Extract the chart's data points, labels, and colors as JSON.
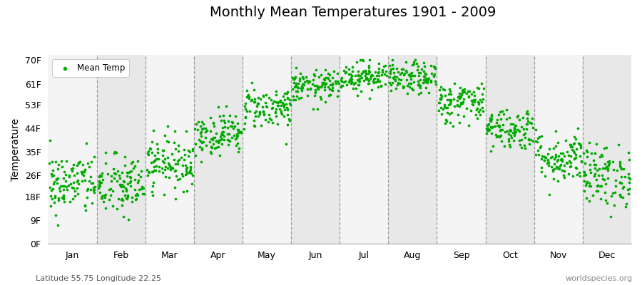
{
  "title": "Monthly Mean Temperatures 1901 - 2009",
  "ylabel": "Temperature",
  "subtitle_left": "Latitude 55.75 Longitude 22.25",
  "watermark": "worldspecies.org",
  "dot_color": "#00AA00",
  "bg_light": "#f4f4f4",
  "bg_dark": "#e8e8e8",
  "vline_color": "#888888",
  "ytick_vals": [
    0,
    9,
    18,
    26,
    35,
    44,
    53,
    61,
    70
  ],
  "ytick_labels": [
    "0F",
    "9F",
    "18F",
    "26F",
    "35F",
    "44F",
    "53F",
    "61F",
    "70F"
  ],
  "ylim": [
    0,
    72
  ],
  "months": [
    "Jan",
    "Feb",
    "Mar",
    "Apr",
    "May",
    "Jun",
    "Jul",
    "Aug",
    "Sep",
    "Oct",
    "Nov",
    "Dec"
  ],
  "n_years": 109,
  "monthly_mean_F": [
    23,
    22,
    31,
    42,
    52,
    60,
    64,
    63,
    54,
    44,
    33,
    26
  ],
  "monthly_std_F": [
    6,
    6,
    5,
    4,
    4,
    3,
    3,
    3,
    4,
    4,
    5,
    6
  ],
  "title_fontsize": 14,
  "tick_fontsize": 9,
  "dot_size": 7
}
